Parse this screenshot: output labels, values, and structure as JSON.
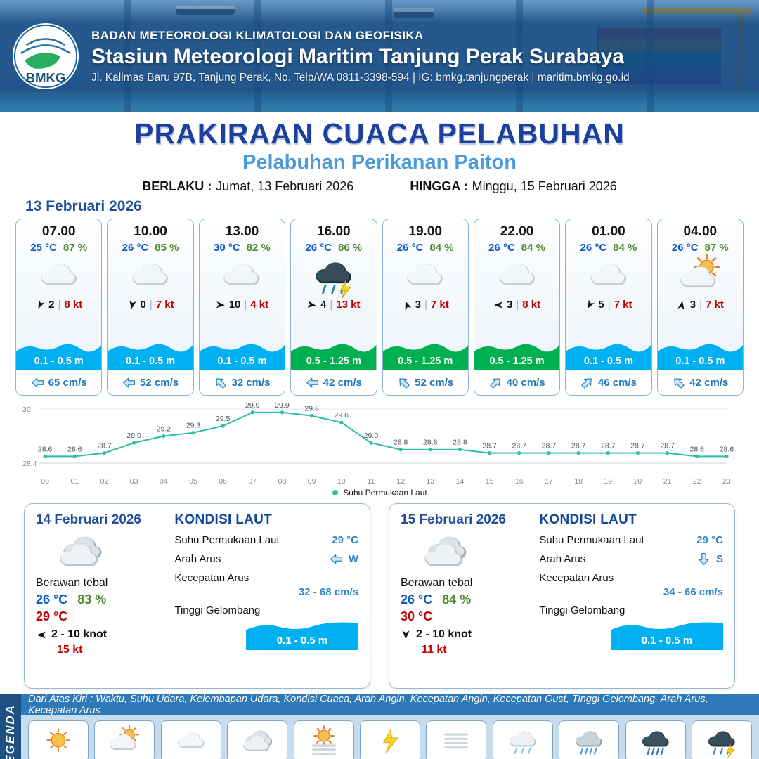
{
  "header": {
    "agency": "BADAN METEOROLOGI KLIMATOLOGI DAN GEOFISIKA",
    "station": "Stasiun Meteorologi Maritim Tanjung Perak Surabaya",
    "address": "Jl. Kalimas Baru 97B, Tanjung Perak, No. Telp/WA 0811-3398-594 | IG: bmkg.tanjungperak | maritim.bmkg.go.id",
    "logo_text": "BMKG"
  },
  "title": {
    "main": "PRAKIRAAN CUACA PELABUHAN",
    "subtitle": "Pelabuhan Perikanan Paiton",
    "valid_label": "BERLAKU :",
    "valid_value": "Jumat, 13 Februari 2026",
    "until_label": "HINGGA :",
    "until_value": "Minggu, 15 Februari 2026"
  },
  "forecast": {
    "date": "13 Februari 2026",
    "cards": [
      {
        "time": "07.00",
        "temp": "25 °C",
        "humidity": "87 %",
        "icon": "berawan",
        "wind_dir_deg": 205,
        "wind_val": "2",
        "wind_gust": "8 kt",
        "wave": "0.1 - 0.5 m",
        "wave_color": "#00b0f0",
        "current_dir_deg": 270,
        "current": "65 cm/s"
      },
      {
        "time": "10.00",
        "temp": "26 °C",
        "humidity": "85 %",
        "icon": "berawan",
        "wind_dir_deg": 190,
        "wind_val": "0",
        "wind_gust": "7 kt",
        "wave": "0.1 - 0.5 m",
        "wave_color": "#00b0f0",
        "current_dir_deg": 270,
        "current": "52 cm/s"
      },
      {
        "time": "13.00",
        "temp": "30 °C",
        "humidity": "82 %",
        "icon": "berawan",
        "wind_dir_deg": 95,
        "wind_val": "10",
        "wind_gust": "4 kt",
        "wave": "0.1 - 0.5 m",
        "wave_color": "#00b0f0",
        "current_dir_deg": 315,
        "current": "32 cm/s"
      },
      {
        "time": "16.00",
        "temp": "26 °C",
        "humidity": "86 %",
        "icon": "hujan-petir",
        "wind_dir_deg": 100,
        "wind_val": "4",
        "wind_gust": "13 kt",
        "wave": "0.5 - 1.25 m",
        "wave_color": "#00b050",
        "current_dir_deg": 270,
        "current": "42 cm/s"
      },
      {
        "time": "19.00",
        "temp": "26 °C",
        "humidity": "84 %",
        "icon": "berawan",
        "wind_dir_deg": 340,
        "wind_val": "3",
        "wind_gust": "7 kt",
        "wave": "0.5 - 1.25 m",
        "wave_color": "#00b050",
        "current_dir_deg": 315,
        "current": "52 cm/s"
      },
      {
        "time": "22.00",
        "temp": "26 °C",
        "humidity": "84 %",
        "icon": "berawan",
        "wind_dir_deg": 270,
        "wind_val": "3",
        "wind_gust": "8 kt",
        "wave": "0.5 - 1.25 m",
        "wave_color": "#00b050",
        "current_dir_deg": 45,
        "current": "40 cm/s"
      },
      {
        "time": "01.00",
        "temp": "26 °C",
        "humidity": "84 %",
        "icon": "berawan",
        "wind_dir_deg": 210,
        "wind_val": "5",
        "wind_gust": "7 kt",
        "wave": "0.1 - 0.5 m",
        "wave_color": "#00b0f0",
        "current_dir_deg": 45,
        "current": "46 cm/s"
      },
      {
        "time": "04.00",
        "temp": "26 °C",
        "humidity": "87 %",
        "icon": "cerah-berawan",
        "wind_dir_deg": 10,
        "wind_val": "3",
        "wind_gust": "7 kt",
        "wave": "0.1 - 0.5 m",
        "wave_color": "#00b0f0",
        "current_dir_deg": 315,
        "current": "42 cm/s"
      }
    ]
  },
  "chart_data": {
    "type": "line",
    "x": [
      "00",
      "01",
      "02",
      "03",
      "04",
      "05",
      "06",
      "07",
      "08",
      "09",
      "10",
      "11",
      "12",
      "13",
      "14",
      "15",
      "16",
      "17",
      "18",
      "19",
      "20",
      "21",
      "22",
      "23"
    ],
    "values": [
      28.6,
      28.6,
      28.7,
      29.0,
      29.2,
      29.3,
      29.5,
      29.9,
      29.9,
      29.8,
      29.6,
      29.0,
      28.8,
      28.8,
      28.8,
      28.7,
      28.7,
      28.7,
      28.7,
      28.7,
      28.7,
      28.7,
      28.6,
      28.6
    ],
    "ylim": [
      28.4,
      30
    ],
    "series_name": "Suhu Permukaan Laut",
    "line_color": "#2bbfa4",
    "legend_position": "bottom",
    "grid": true
  },
  "days": [
    {
      "date": "14 Februari 2026",
      "icon": "berawan-tebal",
      "condition": "Berawan tebal",
      "temp": "26 °C",
      "humidity": "83 %",
      "temp_max": "29 °C",
      "wind_dir_deg": 270,
      "wind_range": "2  - 10 knot",
      "wind_gust": "15 kt",
      "sea": {
        "title": "KONDISI LAUT",
        "sst_label": "Suhu Permukaan Laut",
        "sst": "29 °C",
        "current_dir_label": "Arah Arus",
        "current_dir_deg": 270,
        "current_dir": "W",
        "current_speed_label": "Kecepatan Arus",
        "current_speed": "32 - 68 cm/s",
        "wave_label": "Tinggi Gelombang",
        "wave": "0.1 - 0.5 m",
        "wave_color": "#00b0f0"
      }
    },
    {
      "date": "15 Februari 2026",
      "icon": "berawan-tebal",
      "condition": "Berawan tebal",
      "temp": "26 °C",
      "humidity": "84 %",
      "temp_max": "30 °C",
      "wind_dir_deg": 180,
      "wind_range": "2  - 10 knot",
      "wind_gust": "11 kt",
      "sea": {
        "title": "KONDISI LAUT",
        "sst_label": "Suhu Permukaan Laut",
        "sst": "29 °C",
        "current_dir_label": "Arah Arus",
        "current_dir_deg": 180,
        "current_dir": "S",
        "current_speed_label": "Kecepatan Arus",
        "current_speed": "34 - 66 cm/s",
        "wave_label": "Tinggi Gelombang",
        "wave": "0.1 - 0.5 m",
        "wave_color": "#00b0f0"
      }
    }
  ],
  "legend": {
    "ribbon": "LEGENDA",
    "caption": "Dari Atas Kiri : Waktu, Suhu Udara, Kelembapan Udara, Kondisi Cuaca, Arah Angin, Kecepatan Angin, Kecepatan Gust, Tinggi Gelombang, Arah Arus, Kecepatan Arus",
    "items": [
      {
        "label": "Cerah",
        "icon": "cerah"
      },
      {
        "label": "Cerah Berawan",
        "icon": "cerah-berawan"
      },
      {
        "label": "Berawan",
        "icon": "berawan"
      },
      {
        "label": "Berawan Tebal",
        "icon": "berawan-tebal"
      },
      {
        "label": "Udara Kabur",
        "icon": "udara-kabur"
      },
      {
        "label": "Petir",
        "icon": "petir"
      },
      {
        "label": "Kabut",
        "icon": "kabut"
      },
      {
        "label": "Hujan Ringan",
        "icon": "hujan-ringan"
      },
      {
        "label": "Hujan Sedang",
        "icon": "hujan-sedang"
      },
      {
        "label": "Hujan Lebat",
        "icon": "hujan-lebat"
      },
      {
        "label": "Hujan Petir",
        "icon": "hujan-petir"
      }
    ]
  }
}
